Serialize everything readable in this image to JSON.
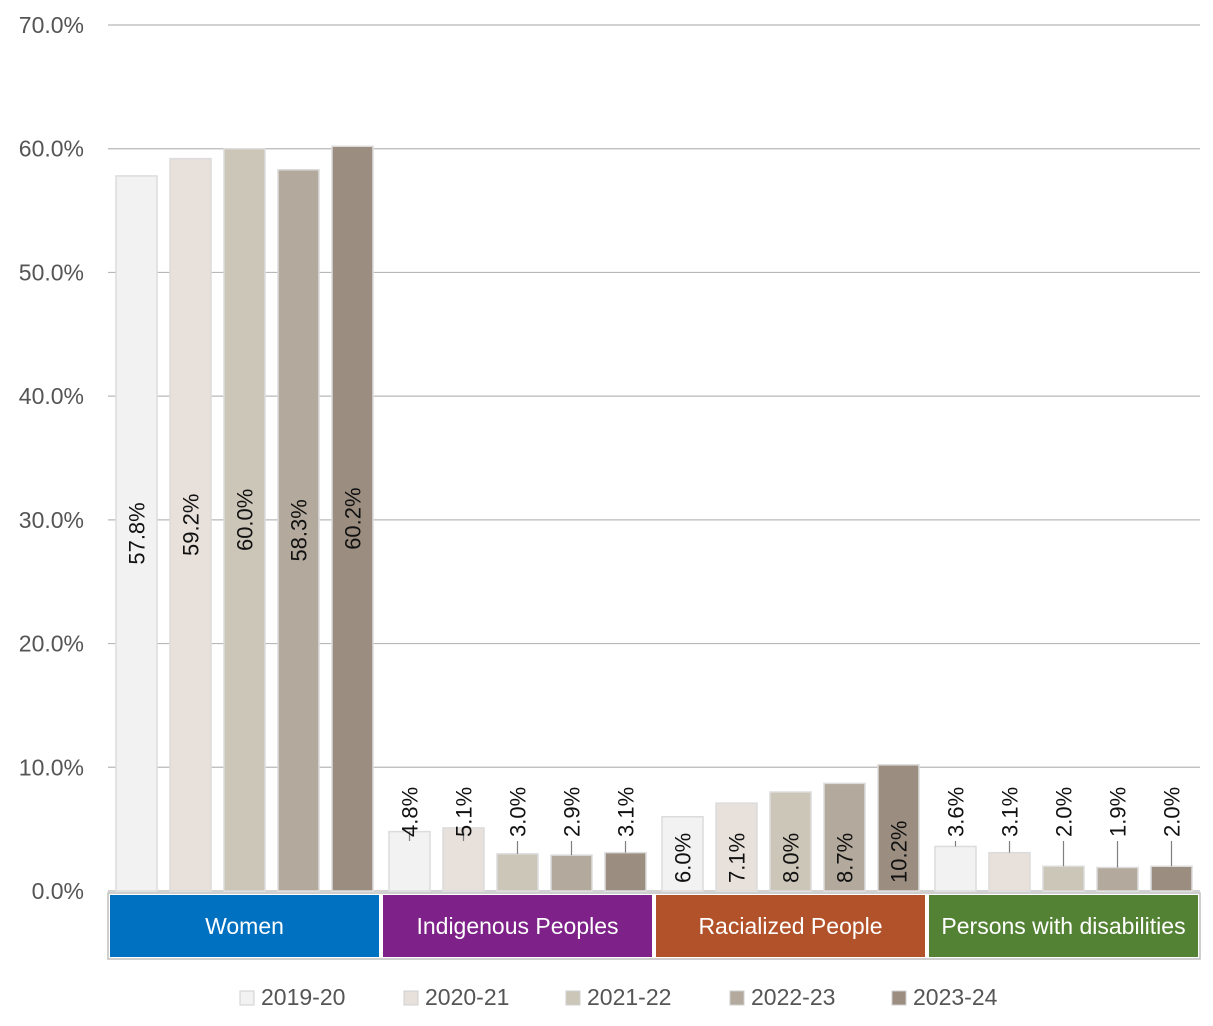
{
  "chart_data": {
    "type": "bar",
    "categories": [
      "Women",
      "Indigenous Peoples",
      "Racialized People",
      "Persons with disabilities"
    ],
    "category_colors": [
      "#0070c0",
      "#7e2188",
      "#b2522a",
      "#548235"
    ],
    "series": [
      {
        "name": "2019-20",
        "color": "#f2f2f2",
        "values": [
          57.8,
          4.8,
          6.0,
          3.6
        ],
        "labels": [
          "57.8%",
          "4.8%",
          "6.0%",
          "3.6%"
        ]
      },
      {
        "name": "2020-21",
        "color": "#e7e0db",
        "values": [
          59.2,
          5.1,
          7.1,
          3.1
        ],
        "labels": [
          "59.2%",
          "5.1%",
          "7.1%",
          "3.1%"
        ]
      },
      {
        "name": "2021-22",
        "color": "#ccc6b8",
        "values": [
          60.0,
          3.0,
          8.0,
          2.0
        ],
        "labels": [
          "60.0%",
          "3.0%",
          "8.0%",
          "2.0%"
        ]
      },
      {
        "name": "2022-23",
        "color": "#b3a99d",
        "values": [
          58.3,
          2.9,
          8.7,
          1.9
        ],
        "labels": [
          "58.3%",
          "2.9%",
          "8.7%",
          "1.9%"
        ]
      },
      {
        "name": "2023-24",
        "color": "#9b8e80",
        "values": [
          60.2,
          3.1,
          10.2,
          2.0
        ],
        "labels": [
          "60.2%",
          "3.1%",
          "10.2%",
          "2.0%"
        ]
      }
    ],
    "ylim": [
      0,
      70
    ],
    "yticks": [
      0,
      10,
      20,
      30,
      40,
      50,
      60,
      70
    ],
    "ytick_labels": [
      "0.0%",
      "10.0%",
      "20.0%",
      "30.0%",
      "40.0%",
      "50.0%",
      "60.0%",
      "70.0%"
    ],
    "title": "",
    "xlabel": "",
    "ylabel": "",
    "grid": true,
    "legend_position": "bottom"
  }
}
